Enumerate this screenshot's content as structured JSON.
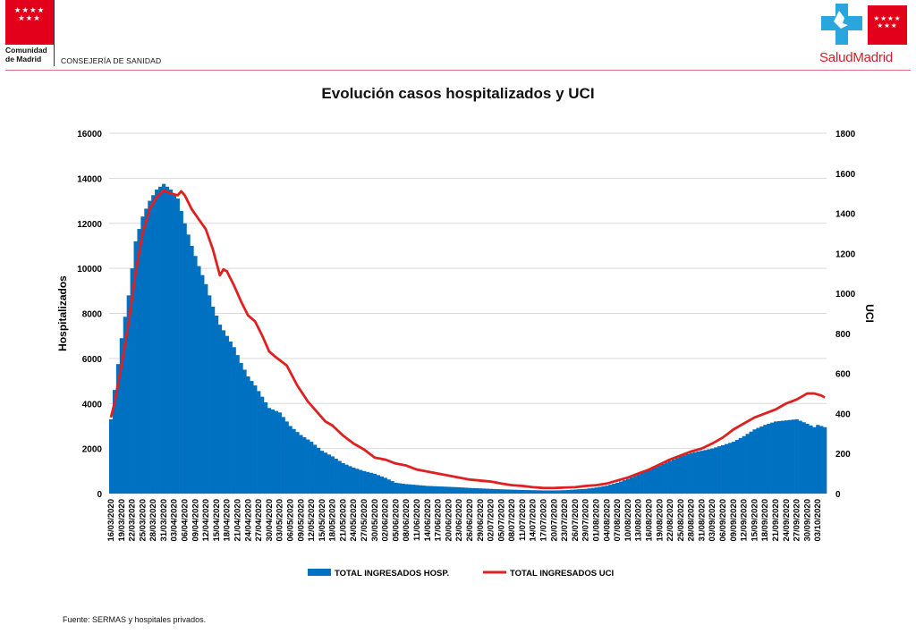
{
  "header": {
    "org_line1": "Comunidad",
    "org_line2": "de Madrid",
    "department": "CONSEJERÍA DE SANIDAD",
    "brand_left": "Salud",
    "brand_right": "Madrid"
  },
  "footer": {
    "source": "Fuente: SERMAS y hospitales privados."
  },
  "colors": {
    "bars": "#0070c0",
    "line": "#e02020",
    "flag": "#e3001b",
    "brand_cross": "#2aa6df"
  },
  "chart_data": {
    "type": "bar",
    "title": "Evolución casos hospitalizados y UCI",
    "ylabel": "Hospitalizados",
    "y2label": "UCI",
    "ylim": [
      0,
      16000
    ],
    "y2lim": [
      0,
      1800
    ],
    "yticks": [
      "0",
      "2000",
      "4000",
      "6000",
      "8000",
      "10000",
      "12000",
      "14000",
      "16000"
    ],
    "y2ticks": [
      "0",
      "200",
      "400",
      "600",
      "800",
      "1000",
      "1200",
      "1400",
      "1600",
      "1800"
    ],
    "grid": true,
    "legend_position": "bottom",
    "x_start": "16/03/2020",
    "x_end": "05/10/2020",
    "tick_dates": [
      "16/03/2020",
      "19/03/2020",
      "22/03/2020",
      "25/03/2020",
      "28/03/2020",
      "31/03/2020",
      "03/04/2020",
      "06/04/2020",
      "09/04/2020",
      "12/04/2020",
      "15/04/2020",
      "18/04/2020",
      "21/04/2020",
      "24/04/2020",
      "27/04/2020",
      "30/04/2020",
      "03/05/2020",
      "06/05/2020",
      "09/05/2020",
      "12/05/2020",
      "15/05/2020",
      "18/05/2020",
      "21/05/2020",
      "24/05/2020",
      "27/05/2020",
      "30/05/2020",
      "02/06/2020",
      "05/06/2020",
      "08/06/2020",
      "11/06/2020",
      "14/06/2020",
      "17/06/2020",
      "20/06/2020",
      "23/06/2020",
      "26/06/2020",
      "29/06/2020",
      "02/07/2020",
      "05/07/2020",
      "08/07/2020",
      "11/07/2020",
      "14/07/2020",
      "17/07/2020",
      "20/07/2020",
      "23/07/2020",
      "26/07/2020",
      "29/07/2020",
      "01/08/2020",
      "04/08/2020",
      "07/08/2020",
      "10/08/2020",
      "13/08/2020",
      "16/08/2020",
      "19/08/2020",
      "22/08/2020",
      "25/08/2020",
      "28/08/2020",
      "31/08/2020",
      "03/09/2020",
      "06/09/2020",
      "09/09/2020",
      "12/09/2020",
      "15/09/2020",
      "18/09/2020",
      "21/09/2020",
      "24/09/2020",
      "27/09/2020",
      "30/09/2020",
      "03/10/2020"
    ],
    "series": [
      {
        "name": "TOTAL INGRESADOS HOSP.",
        "type": "bar",
        "axis": "left",
        "keypoints": [
          [
            "16/03/2020",
            3300
          ],
          [
            "17/03/2020",
            4600
          ],
          [
            "19/03/2020",
            6900
          ],
          [
            "21/03/2020",
            8800
          ],
          [
            "23/03/2020",
            11200
          ],
          [
            "25/03/2020",
            12300
          ],
          [
            "27/03/2020",
            13000
          ],
          [
            "29/03/2020",
            13500
          ],
          [
            "31/03/2020",
            13750
          ],
          [
            "02/04/2020",
            13500
          ],
          [
            "04/04/2020",
            13100
          ],
          [
            "06/04/2020",
            12000
          ],
          [
            "08/04/2020",
            11000
          ],
          [
            "10/04/2020",
            10100
          ],
          [
            "12/04/2020",
            9300
          ],
          [
            "14/04/2020",
            8300
          ],
          [
            "16/04/2020",
            7500
          ],
          [
            "18/04/2020",
            7000
          ],
          [
            "20/04/2020",
            6500
          ],
          [
            "22/04/2020",
            5800
          ],
          [
            "24/04/2020",
            5200
          ],
          [
            "26/04/2020",
            4800
          ],
          [
            "28/04/2020",
            4300
          ],
          [
            "30/04/2020",
            3800
          ],
          [
            "03/05/2020",
            3600
          ],
          [
            "06/05/2020",
            3000
          ],
          [
            "09/05/2020",
            2600
          ],
          [
            "12/05/2020",
            2300
          ],
          [
            "15/05/2020",
            1900
          ],
          [
            "18/05/2020",
            1650
          ],
          [
            "21/05/2020",
            1350
          ],
          [
            "24/05/2020",
            1150
          ],
          [
            "27/05/2020",
            1000
          ],
          [
            "30/05/2020",
            880
          ],
          [
            "02/06/2020",
            700
          ],
          [
            "05/06/2020",
            480
          ],
          [
            "08/06/2020",
            420
          ],
          [
            "11/06/2020",
            380
          ],
          [
            "14/06/2020",
            340
          ],
          [
            "17/06/2020",
            320
          ],
          [
            "20/06/2020",
            300
          ],
          [
            "23/06/2020",
            280
          ],
          [
            "26/06/2020",
            250
          ],
          [
            "29/06/2020",
            230
          ],
          [
            "02/07/2020",
            210
          ],
          [
            "05/07/2020",
            190
          ],
          [
            "08/07/2020",
            175
          ],
          [
            "11/07/2020",
            160
          ],
          [
            "14/07/2020",
            150
          ],
          [
            "17/07/2020",
            140
          ],
          [
            "20/07/2020",
            140
          ],
          [
            "23/07/2020",
            150
          ],
          [
            "26/07/2020",
            180
          ],
          [
            "29/07/2020",
            210
          ],
          [
            "01/08/2020",
            270
          ],
          [
            "04/08/2020",
            350
          ],
          [
            "07/08/2020",
            480
          ],
          [
            "10/08/2020",
            650
          ],
          [
            "13/08/2020",
            850
          ],
          [
            "16/08/2020",
            1050
          ],
          [
            "19/08/2020",
            1250
          ],
          [
            "22/08/2020",
            1450
          ],
          [
            "25/08/2020",
            1650
          ],
          [
            "28/08/2020",
            1800
          ],
          [
            "31/08/2020",
            1900
          ],
          [
            "03/09/2020",
            2000
          ],
          [
            "06/09/2020",
            2150
          ],
          [
            "09/09/2020",
            2300
          ],
          [
            "12/09/2020",
            2550
          ],
          [
            "15/09/2020",
            2850
          ],
          [
            "18/09/2020",
            3050
          ],
          [
            "21/09/2020",
            3200
          ],
          [
            "24/09/2020",
            3250
          ],
          [
            "27/09/2020",
            3300
          ],
          [
            "30/09/2020",
            3100
          ],
          [
            "02/10/2020",
            2950
          ],
          [
            "03/10/2020",
            3050
          ],
          [
            "05/10/2020",
            2950
          ]
        ]
      },
      {
        "name": "TOTAL INGRESADOS UCI",
        "type": "line",
        "axis": "right",
        "keypoints": [
          [
            "16/03/2020",
            380
          ],
          [
            "17/03/2020",
            450
          ],
          [
            "19/03/2020",
            640
          ],
          [
            "21/03/2020",
            850
          ],
          [
            "23/03/2020",
            1100
          ],
          [
            "25/03/2020",
            1300
          ],
          [
            "27/03/2020",
            1420
          ],
          [
            "29/03/2020",
            1480
          ],
          [
            "31/03/2020",
            1515
          ],
          [
            "02/04/2020",
            1500
          ],
          [
            "04/04/2020",
            1490
          ],
          [
            "05/04/2020",
            1510
          ],
          [
            "06/04/2020",
            1490
          ],
          [
            "08/04/2020",
            1420
          ],
          [
            "10/04/2020",
            1370
          ],
          [
            "12/04/2020",
            1320
          ],
          [
            "14/04/2020",
            1220
          ],
          [
            "16/04/2020",
            1090
          ],
          [
            "17/04/2020",
            1120
          ],
          [
            "18/04/2020",
            1110
          ],
          [
            "20/04/2020",
            1040
          ],
          [
            "22/04/2020",
            960
          ],
          [
            "24/04/2020",
            890
          ],
          [
            "26/04/2020",
            860
          ],
          [
            "28/04/2020",
            790
          ],
          [
            "30/04/2020",
            710
          ],
          [
            "02/05/2020",
            680
          ],
          [
            "05/05/2020",
            640
          ],
          [
            "08/05/2020",
            540
          ],
          [
            "11/05/2020",
            460
          ],
          [
            "14/05/2020",
            400
          ],
          [
            "16/05/2020",
            360
          ],
          [
            "18/05/2020",
            340
          ],
          [
            "21/05/2020",
            290
          ],
          [
            "24/05/2020",
            250
          ],
          [
            "27/05/2020",
            220
          ],
          [
            "30/05/2020",
            180
          ],
          [
            "02/06/2020",
            170
          ],
          [
            "05/06/2020",
            150
          ],
          [
            "08/06/2020",
            140
          ],
          [
            "11/06/2020",
            120
          ],
          [
            "14/06/2020",
            110
          ],
          [
            "17/06/2020",
            100
          ],
          [
            "20/06/2020",
            90
          ],
          [
            "23/06/2020",
            80
          ],
          [
            "26/06/2020",
            70
          ],
          [
            "29/06/2020",
            65
          ],
          [
            "02/07/2020",
            60
          ],
          [
            "05/07/2020",
            50
          ],
          [
            "08/07/2020",
            42
          ],
          [
            "11/07/2020",
            38
          ],
          [
            "14/07/2020",
            32
          ],
          [
            "17/07/2020",
            28
          ],
          [
            "20/07/2020",
            28
          ],
          [
            "23/07/2020",
            30
          ],
          [
            "26/07/2020",
            32
          ],
          [
            "29/07/2020",
            38
          ],
          [
            "01/08/2020",
            42
          ],
          [
            "04/08/2020",
            50
          ],
          [
            "07/08/2020",
            65
          ],
          [
            "10/08/2020",
            80
          ],
          [
            "13/08/2020",
            100
          ],
          [
            "16/08/2020",
            120
          ],
          [
            "19/08/2020",
            145
          ],
          [
            "22/08/2020",
            170
          ],
          [
            "25/08/2020",
            190
          ],
          [
            "28/08/2020",
            210
          ],
          [
            "31/08/2020",
            225
          ],
          [
            "03/09/2020",
            250
          ],
          [
            "06/09/2020",
            280
          ],
          [
            "09/09/2020",
            320
          ],
          [
            "12/09/2020",
            350
          ],
          [
            "15/09/2020",
            380
          ],
          [
            "18/09/2020",
            400
          ],
          [
            "21/09/2020",
            420
          ],
          [
            "24/09/2020",
            450
          ],
          [
            "27/09/2020",
            470
          ],
          [
            "30/09/2020",
            500
          ],
          [
            "02/10/2020",
            500
          ],
          [
            "04/10/2020",
            490
          ],
          [
            "05/10/2020",
            480
          ]
        ]
      }
    ]
  }
}
